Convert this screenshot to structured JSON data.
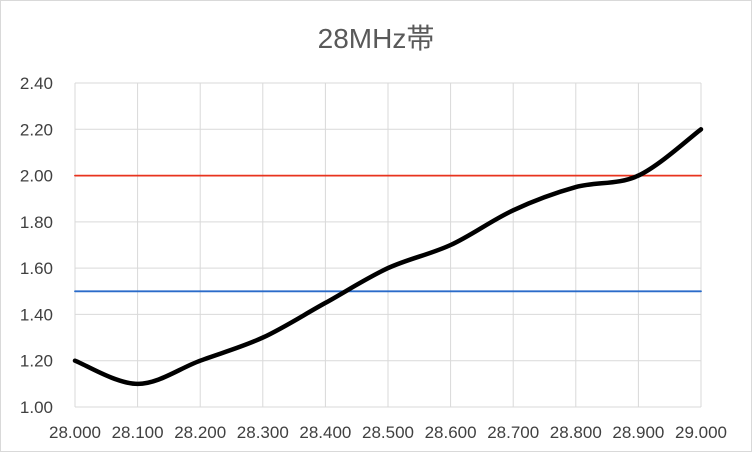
{
  "chart_data": {
    "type": "line",
    "title": "28MHz帯",
    "xlabel": "",
    "ylabel": "",
    "xlim": [
      28.0,
      29.0
    ],
    "ylim": [
      1.0,
      2.4
    ],
    "x_ticks": [
      "28.000",
      "28.100",
      "28.200",
      "28.300",
      "28.400",
      "28.500",
      "28.600",
      "28.700",
      "28.800",
      "28.900",
      "29.000"
    ],
    "y_ticks": [
      "1.00",
      "1.20",
      "1.40",
      "1.60",
      "1.80",
      "2.00",
      "2.20",
      "2.40"
    ],
    "grid": true,
    "legend": "none",
    "series": [
      {
        "color": "#000000",
        "x": [
          28.0,
          28.1,
          28.2,
          28.3,
          28.4,
          28.5,
          28.6,
          28.7,
          28.8,
          28.9,
          29.0
        ],
        "values": [
          1.2,
          1.1,
          1.2,
          1.3,
          1.45,
          1.6,
          1.7,
          1.85,
          1.95,
          2.0,
          2.2
        ]
      },
      {
        "color": "#e8331e",
        "x": [
          28.0,
          29.0
        ],
        "values": [
          2.0,
          2.0
        ]
      },
      {
        "color": "#2a6bc9",
        "x": [
          28.0,
          29.0
        ],
        "values": [
          1.5,
          1.5
        ]
      }
    ]
  }
}
